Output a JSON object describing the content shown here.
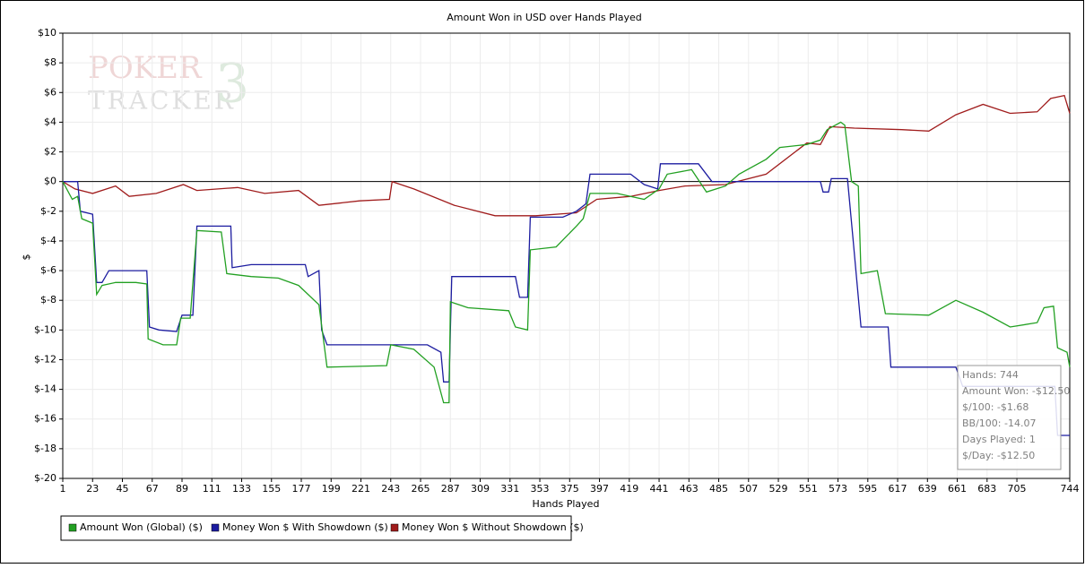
{
  "chart_data": {
    "type": "line",
    "title": "Amount Won in USD over Hands Played",
    "x_label": "Hands Played",
    "y_label": "$",
    "watermark": {
      "line1": "POKER",
      "line2": "TRACKER",
      "mark": "3"
    },
    "xlim": [
      1,
      744
    ],
    "xticks": [
      1,
      23,
      45,
      67,
      89,
      111,
      133,
      155,
      177,
      199,
      221,
      243,
      265,
      287,
      309,
      331,
      353,
      375,
      397,
      419,
      441,
      463,
      485,
      507,
      529,
      551,
      573,
      595,
      617,
      639,
      661,
      683,
      705,
      744
    ],
    "ylim": [
      -20,
      10
    ],
    "yticks": [
      {
        "value": 10,
        "label": "$10"
      },
      {
        "value": 8,
        "label": "$8"
      },
      {
        "value": 6,
        "label": "$6"
      },
      {
        "value": 4,
        "label": "$4"
      },
      {
        "value": 2,
        "label": "$2"
      },
      {
        "value": 0,
        "label": "$0"
      },
      {
        "value": -2,
        "label": "$-2"
      },
      {
        "value": -4,
        "label": "$-4"
      },
      {
        "value": -6,
        "label": "$-6"
      },
      {
        "value": -8,
        "label": "$-8"
      },
      {
        "value": -10,
        "label": "$-10"
      },
      {
        "value": -12,
        "label": "$-12"
      },
      {
        "value": -14,
        "label": "$-14"
      },
      {
        "value": -16,
        "label": "$-16"
      },
      {
        "value": -18,
        "label": "$-18"
      },
      {
        "value": -20,
        "label": "$-20"
      }
    ],
    "grid": true,
    "series": [
      {
        "name": "Amount Won (Global) ($)",
        "color": "#22a022",
        "x": [
          1,
          8,
          12,
          15,
          23,
          26,
          30,
          40,
          55,
          63,
          64,
          75,
          85,
          88,
          95,
          100,
          118,
          122,
          140,
          160,
          175,
          190,
          196,
          240,
          243,
          260,
          275,
          282,
          286,
          287,
          300,
          330,
          335,
          344,
          346,
          365,
          380,
          385,
          390,
          410,
          420,
          430,
          441,
          447,
          465,
          476,
          490,
          500,
          520,
          530,
          550,
          560,
          565,
          575,
          578,
          583,
          588,
          590,
          602,
          608,
          640,
          660,
          680,
          700,
          720,
          725,
          732,
          735,
          742,
          744
        ],
        "values": [
          0,
          -1.2,
          -1.0,
          -2.5,
          -2.8,
          -7.6,
          -7.0,
          -6.8,
          -6.8,
          -6.9,
          -10.6,
          -11.0,
          -11.0,
          -9.2,
          -9.2,
          -3.3,
          -3.4,
          -6.2,
          -6.4,
          -6.5,
          -7.0,
          -8.3,
          -12.5,
          -12.4,
          -11.0,
          -11.3,
          -12.5,
          -14.9,
          -14.9,
          -8.1,
          -8.5,
          -8.7,
          -9.8,
          -10.0,
          -4.6,
          -4.4,
          -3.0,
          -2.5,
          -0.8,
          -0.8,
          -1.0,
          -1.2,
          -0.5,
          0.5,
          0.8,
          -0.7,
          -0.3,
          0.5,
          1.5,
          2.3,
          2.5,
          2.8,
          3.5,
          4.0,
          3.8,
          0,
          -0.3,
          -6.2,
          -6.0,
          -8.9,
          -9.0,
          -8.0,
          -8.8,
          -9.8,
          -9.5,
          -8.5,
          -8.4,
          -11.2,
          -11.5,
          -12.5
        ]
      },
      {
        "name": "Money Won $ With Showdown ($)",
        "color": "#1c1ca0",
        "x": [
          1,
          12,
          14,
          23,
          26,
          30,
          35,
          63,
          65,
          72,
          85,
          89,
          97,
          100,
          125,
          126,
          140,
          180,
          182,
          190,
          192,
          196,
          270,
          280,
          282,
          286,
          288,
          335,
          338,
          344,
          346,
          370,
          380,
          387,
          390,
          420,
          430,
          440,
          442,
          470,
          480,
          560,
          562,
          566,
          568,
          580,
          584,
          590,
          610,
          612,
          660,
          665,
          733,
          735,
          744
        ],
        "values": [
          0,
          0,
          -2.0,
          -2.2,
          -6.8,
          -6.8,
          -6.0,
          -6.0,
          -9.8,
          -10.0,
          -10.1,
          -9.0,
          -9.0,
          -3.0,
          -3.0,
          -5.8,
          -5.6,
          -5.6,
          -6.4,
          -6.0,
          -10.0,
          -11.0,
          -11.0,
          -11.5,
          -13.5,
          -13.5,
          -6.4,
          -6.4,
          -7.8,
          -7.8,
          -2.4,
          -2.4,
          -2.0,
          -1.5,
          0.5,
          0.5,
          -0.2,
          -0.5,
          1.2,
          1.2,
          0,
          0,
          -0.7,
          -0.7,
          0.2,
          0.2,
          -3.8,
          -9.8,
          -9.8,
          -12.5,
          -12.5,
          -13.8,
          -13.8,
          -17.1,
          -17.1
        ]
      },
      {
        "name": "Money Won $ Without Showdown ($)",
        "color": "#a01c1c",
        "x": [
          1,
          10,
          23,
          40,
          50,
          70,
          90,
          100,
          130,
          150,
          175,
          190,
          220,
          242,
          244,
          260,
          290,
          320,
          350,
          380,
          395,
          420,
          441,
          460,
          490,
          520,
          550,
          560,
          567,
          585,
          620,
          640,
          660,
          680,
          700,
          720,
          730,
          740,
          744
        ],
        "values": [
          0,
          -0.5,
          -0.8,
          -0.3,
          -1.0,
          -0.8,
          -0.2,
          -0.6,
          -0.4,
          -0.8,
          -0.6,
          -1.6,
          -1.3,
          -1.2,
          0,
          -0.5,
          -1.6,
          -2.3,
          -2.3,
          -2.1,
          -1.2,
          -1.0,
          -0.6,
          -0.3,
          -0.2,
          0.5,
          2.6,
          2.5,
          3.7,
          3.6,
          3.5,
          3.4,
          4.5,
          5.2,
          4.6,
          4.7,
          5.6,
          5.8,
          4.6
        ]
      }
    ],
    "legend": "bottom-left",
    "tooltip": [
      "Hands: 744",
      "Amount Won: -$12.50",
      "$/100: -$1.68",
      "BB/100: -14.07",
      "Days Played: 1",
      "$/Day: -$12.50"
    ]
  }
}
